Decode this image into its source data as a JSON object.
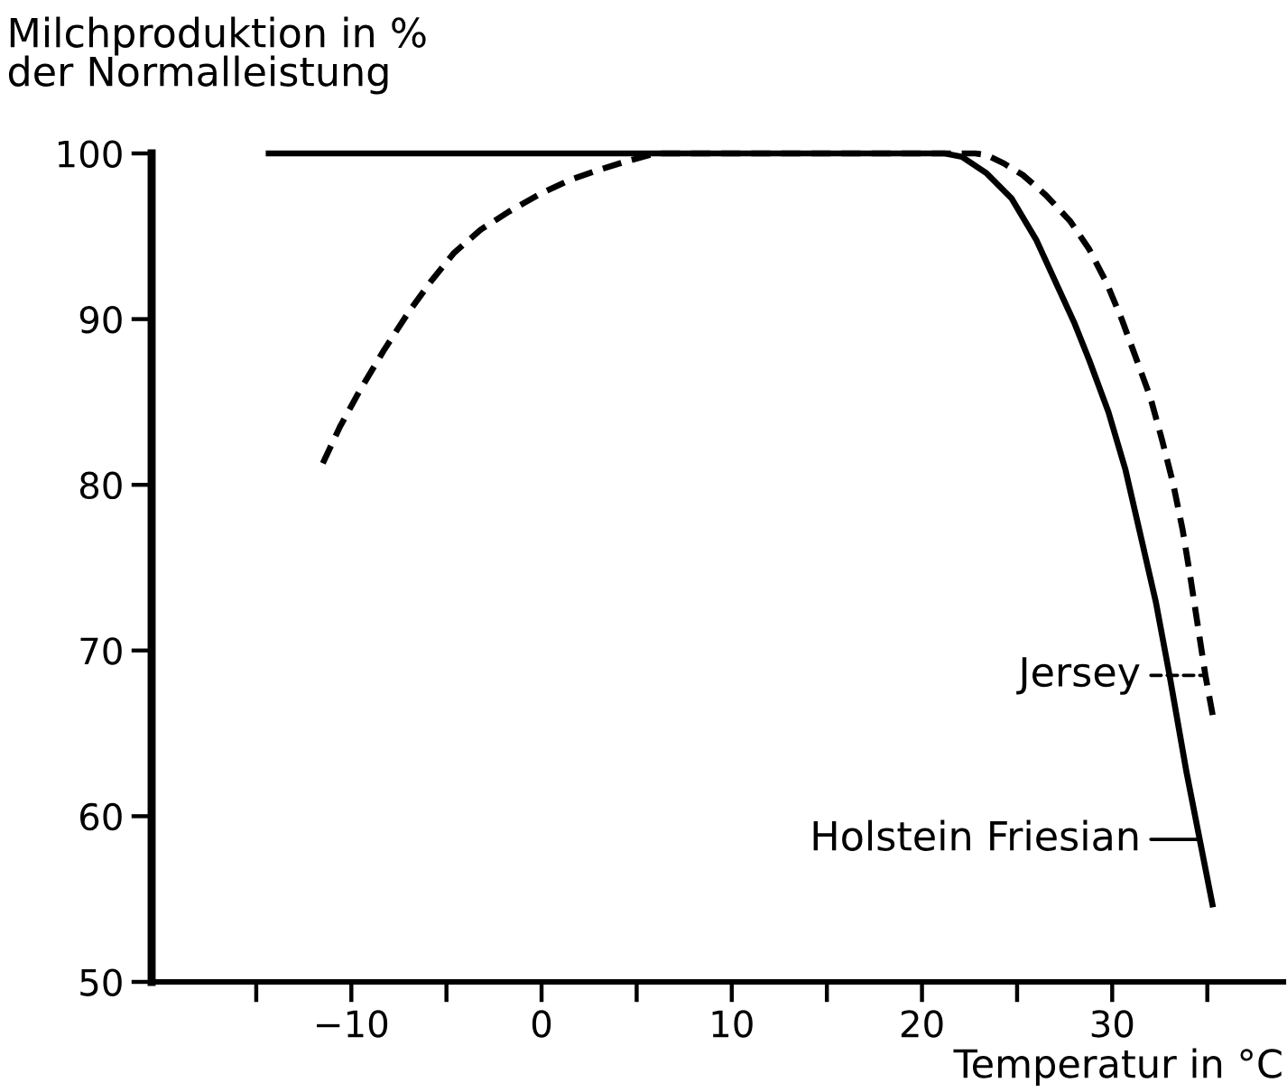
{
  "chart_data": {
    "type": "line",
    "ylabel": "Milchproduktion in %\nder Normalleistung",
    "xlabel": "Temperatur in °C",
    "xlim": [
      -20.5,
      39
    ],
    "ylim": [
      50,
      100
    ],
    "legend": "bottom right",
    "xticks": [
      {
        "value": -15,
        "label": null
      },
      -10,
      {
        "value": -5,
        "label": null
      },
      0,
      {
        "value": 5,
        "label": null
      },
      10,
      {
        "value": 15,
        "label": null
      },
      20,
      {
        "value": 25,
        "label": null
      },
      30,
      {
        "value": 35,
        "label": null
      }
    ],
    "yticks": [
      50,
      60,
      70,
      80,
      90,
      100
    ],
    "series": [
      {
        "name": "Jersey",
        "color": "#000000",
        "line_style": "dashed",
        "x": [
          -11.5,
          -10.6,
          -9.6,
          -8.3,
          -7.0,
          -5.8,
          -4.6,
          -3.2,
          -1.7,
          0,
          1.5,
          3.0,
          4.4,
          6,
          22,
          22.8,
          23.4,
          24.3,
          25.3,
          26.5,
          27.8,
          28.8,
          29.7,
          30.5,
          31.3,
          32.0,
          32.6,
          33.2,
          33.7,
          34.1,
          34.5,
          34.9,
          35.3
        ],
        "values": [
          81.3,
          83.5,
          85.6,
          88.1,
          90.4,
          92.3,
          94.0,
          95.4,
          96.5,
          97.6,
          98.4,
          99.0,
          99.5,
          100,
          100,
          100,
          99.9,
          99.4,
          98.7,
          97.5,
          95.9,
          94.2,
          92.2,
          90.0,
          87.5,
          85.3,
          82.8,
          80.1,
          77.3,
          74.5,
          71.5,
          68.5,
          66.0
        ]
      },
      {
        "name": "Holstein Friesian",
        "color": "#000000",
        "line_style": "solid",
        "x": [
          -14.5,
          20,
          21.2,
          22.1,
          23.4,
          24.7,
          26.0,
          27.2,
          28.0,
          28.8,
          29.8,
          30.7,
          31.5,
          32.3,
          33.0,
          33.9,
          34.6,
          35.3
        ],
        "values": [
          100,
          100,
          100,
          99.8,
          98.8,
          97.3,
          94.8,
          91.8,
          89.8,
          87.5,
          84.4,
          80.9,
          76.9,
          72.9,
          68.6,
          62.7,
          58.6,
          54.5
        ]
      }
    ]
  }
}
